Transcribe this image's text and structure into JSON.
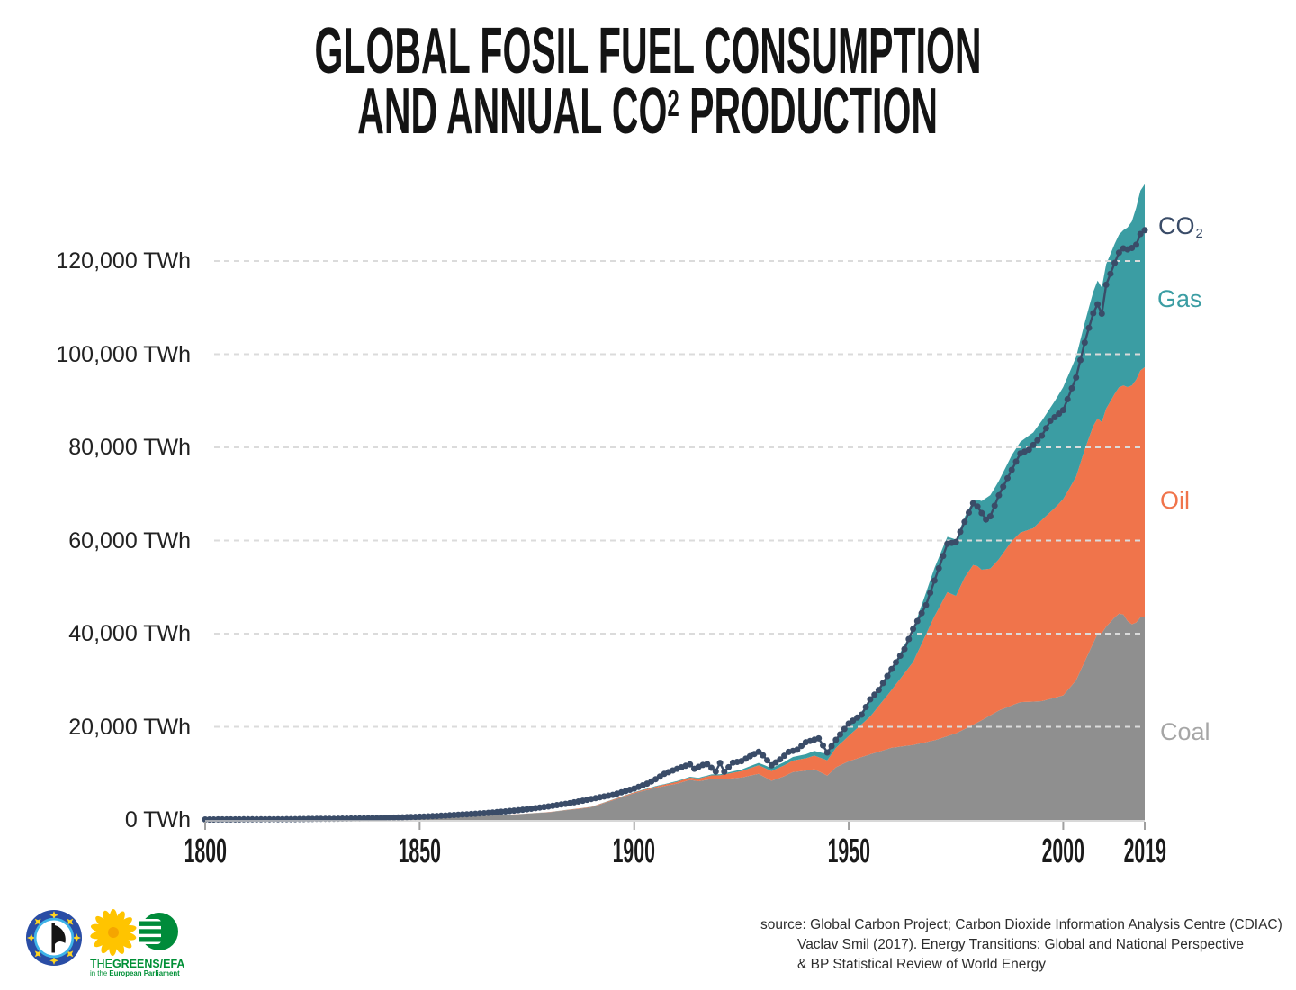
{
  "title": {
    "line1": "GLOBAL FOSIL FUEL CONSUMPTION",
    "line2_pre": "AND ANNUAL CO",
    "line2_sup": "2",
    "line2_post": " PRODUCTION"
  },
  "legend": {
    "co2_pre": "CO",
    "co2_sub": "2",
    "gas": "Gas",
    "oil": "Oil",
    "coal": "Coal"
  },
  "source": {
    "line1": "source: Global Carbon Project; Carbon Dioxide Information Analysis Centre (CDIAC)",
    "line2": "Vaclav Smil (2017). Energy Transitions: Global and National Perspective",
    "line3": "& BP Statistical Review of World Energy"
  },
  "footer_logos": {
    "pirate_alt": "european-pirate-party-logo",
    "greens": {
      "the": "THE",
      "rest": "GREENS/EFA",
      "sub_pre": "in the ",
      "sub_bold": "European Parliament"
    }
  },
  "chart_data": {
    "type": "area",
    "stacked": true,
    "title": "Global fosil fuel consumption and annual CO2 production",
    "x": {
      "min": 1800,
      "max": 2019,
      "ticks": [
        1800,
        1850,
        1900,
        1950,
        2000,
        2019
      ]
    },
    "y": {
      "min": 0,
      "max": 130000,
      "unit": "TWh",
      "label_ticks": [
        0,
        20000,
        40000,
        60000,
        80000,
        100000,
        120000
      ],
      "grid_ticks": [
        20000,
        40000,
        60000,
        80000,
        100000,
        120000
      ],
      "gridline_color": "#DBDBDB",
      "axis_color": "#CCCCCC",
      "tick_color": "#A0A0A0"
    },
    "series": [
      {
        "name": "Coal",
        "color": "#8F8F8F",
        "label_color": "#A6A6A6",
        "points": [
          [
            1800,
            97
          ],
          [
            1810,
            128
          ],
          [
            1820,
            153
          ],
          [
            1830,
            264
          ],
          [
            1840,
            356
          ],
          [
            1850,
            569
          ],
          [
            1860,
            794
          ],
          [
            1870,
            1061
          ],
          [
            1880,
            1642
          ],
          [
            1890,
            2703
          ],
          [
            1900,
            5728
          ],
          [
            1905,
            6900
          ],
          [
            1910,
            7800
          ],
          [
            1913,
            8600
          ],
          [
            1915,
            8300
          ],
          [
            1918,
            8800
          ],
          [
            1920,
            8700
          ],
          [
            1925,
            9100
          ],
          [
            1929,
            9900
          ],
          [
            1932,
            8400
          ],
          [
            1935,
            9400
          ],
          [
            1937,
            10300
          ],
          [
            1940,
            10600
          ],
          [
            1942,
            10900
          ],
          [
            1945,
            9500
          ],
          [
            1947,
            11300
          ],
          [
            1950,
            12600
          ],
          [
            1955,
            14100
          ],
          [
            1960,
            15500
          ],
          [
            1965,
            16100
          ],
          [
            1970,
            17100
          ],
          [
            1975,
            18600
          ],
          [
            1980,
            20900
          ],
          [
            1985,
            23500
          ],
          [
            1990,
            25300
          ],
          [
            1995,
            25500
          ],
          [
            2000,
            26750
          ],
          [
            2003,
            30000
          ],
          [
            2005,
            34000
          ],
          [
            2007,
            38000
          ],
          [
            2008,
            40000
          ],
          [
            2009,
            40100
          ],
          [
            2010,
            41500
          ],
          [
            2012,
            43500
          ],
          [
            2013,
            44300
          ],
          [
            2014,
            44100
          ],
          [
            2015,
            42700
          ],
          [
            2016,
            42000
          ],
          [
            2017,
            42400
          ],
          [
            2018,
            43500
          ],
          [
            2019,
            43600
          ]
        ]
      },
      {
        "name": "Oil",
        "color": "#F0744B",
        "label_color": "#F0744B",
        "points": [
          [
            1860,
            0
          ],
          [
            1870,
            9
          ],
          [
            1880,
            33
          ],
          [
            1890,
            89
          ],
          [
            1900,
            181
          ],
          [
            1905,
            250
          ],
          [
            1910,
            397
          ],
          [
            1915,
            560
          ],
          [
            1920,
            889
          ],
          [
            1925,
            1400
          ],
          [
            1930,
            1935
          ],
          [
            1935,
            2340
          ],
          [
            1940,
            2646
          ],
          [
            1945,
            3300
          ],
          [
            1950,
            5444
          ],
          [
            1955,
            8100
          ],
          [
            1960,
            12415
          ],
          [
            1965,
            17800
          ],
          [
            1970,
            26662
          ],
          [
            1973,
            30900
          ],
          [
            1975,
            29500
          ],
          [
            1977,
            32500
          ],
          [
            1979,
            34300
          ],
          [
            1980,
            33600
          ],
          [
            1981,
            32300
          ],
          [
            1983,
            31500
          ],
          [
            1985,
            32500
          ],
          [
            1988,
            35300
          ],
          [
            1990,
            36400
          ],
          [
            1993,
            37200
          ],
          [
            1995,
            38900
          ],
          [
            1998,
            40700
          ],
          [
            2000,
            42150
          ],
          [
            2003,
            43700
          ],
          [
            2005,
            45500
          ],
          [
            2007,
            46600
          ],
          [
            2008,
            46200
          ],
          [
            2009,
            45300
          ],
          [
            2010,
            46800
          ],
          [
            2012,
            48000
          ],
          [
            2014,
            49200
          ],
          [
            2016,
            51300
          ],
          [
            2018,
            53000
          ],
          [
            2019,
            53620
          ]
        ]
      },
      {
        "name": "Gas",
        "color": "#3B9DA3",
        "label_color": "#3B9DA3",
        "points": [
          [
            1880,
            7
          ],
          [
            1890,
            30
          ],
          [
            1900,
            64
          ],
          [
            1910,
            150
          ],
          [
            1920,
            233
          ],
          [
            1925,
            330
          ],
          [
            1930,
            570
          ],
          [
            1935,
            700
          ],
          [
            1940,
            866
          ],
          [
            1945,
            1300
          ],
          [
            1950,
            2092
          ],
          [
            1955,
            3150
          ],
          [
            1960,
            4708
          ],
          [
            1965,
            6900
          ],
          [
            1970,
            10337
          ],
          [
            1973,
            11900
          ],
          [
            1975,
            12100
          ],
          [
            1980,
            14243
          ],
          [
            1985,
            16800
          ],
          [
            1990,
            19484
          ],
          [
            1995,
            21300
          ],
          [
            2000,
            24038
          ],
          [
            2003,
            25700
          ],
          [
            2005,
            27200
          ],
          [
            2007,
            28800
          ],
          [
            2008,
            29600
          ],
          [
            2009,
            28900
          ],
          [
            2010,
            31000
          ],
          [
            2012,
            32200
          ],
          [
            2014,
            33300
          ],
          [
            2016,
            35200
          ],
          [
            2018,
            38600
          ],
          [
            2019,
            39292
          ]
        ]
      }
    ],
    "line_series": {
      "name": "CO2",
      "color": "#3A4C68",
      "points": [
        [
          1800,
          100
        ],
        [
          1810,
          130
        ],
        [
          1820,
          170
        ],
        [
          1830,
          260
        ],
        [
          1840,
          390
        ],
        [
          1850,
          690
        ],
        [
          1855,
          900
        ],
        [
          1860,
          1170
        ],
        [
          1865,
          1450
        ],
        [
          1870,
          1830
        ],
        [
          1875,
          2300
        ],
        [
          1880,
          2900
        ],
        [
          1885,
          3600
        ],
        [
          1890,
          4500
        ],
        [
          1895,
          5400
        ],
        [
          1900,
          6740
        ],
        [
          1903,
          7800
        ],
        [
          1905,
          8760
        ],
        [
          1907,
          9900
        ],
        [
          1910,
          11000
        ],
        [
          1913,
          11940
        ],
        [
          1914,
          11000
        ],
        [
          1916,
          11800
        ],
        [
          1917,
          12000
        ],
        [
          1919,
          10400
        ],
        [
          1920,
          12250
        ],
        [
          1921,
          10350
        ],
        [
          1923,
          12300
        ],
        [
          1925,
          12630
        ],
        [
          1927,
          13700
        ],
        [
          1929,
          14630
        ],
        [
          1930,
          13900
        ],
        [
          1932,
          11730
        ],
        [
          1934,
          13000
        ],
        [
          1936,
          14600
        ],
        [
          1938,
          15100
        ],
        [
          1940,
          16700
        ],
        [
          1943,
          17500
        ],
        [
          1945,
          14500
        ],
        [
          1947,
          17200
        ],
        [
          1950,
          20700
        ],
        [
          1953,
          22600
        ],
        [
          1955,
          25900
        ],
        [
          1957,
          27900
        ],
        [
          1960,
          32400
        ],
        [
          1963,
          36700
        ],
        [
          1965,
          41000
        ],
        [
          1968,
          46100
        ],
        [
          1970,
          51400
        ],
        [
          1973,
          59300
        ],
        [
          1975,
          59700
        ],
        [
          1977,
          64000
        ],
        [
          1979,
          68000
        ],
        [
          1980,
          67300
        ],
        [
          1982,
          64500
        ],
        [
          1983,
          65200
        ],
        [
          1985,
          69700
        ],
        [
          1987,
          73400
        ],
        [
          1990,
          78700
        ],
        [
          1992,
          79500
        ],
        [
          1995,
          82500
        ],
        [
          1997,
          85700
        ],
        [
          2000,
          88000
        ],
        [
          2003,
          95000
        ],
        [
          2005,
          102500
        ],
        [
          2007,
          108800
        ],
        [
          2008,
          110700
        ],
        [
          2009,
          108700
        ],
        [
          2010,
          114900
        ],
        [
          2012,
          119600
        ],
        [
          2013,
          121800
        ],
        [
          2014,
          122700
        ],
        [
          2015,
          122500
        ],
        [
          2016,
          122800
        ],
        [
          2017,
          123500
        ],
        [
          2018,
          125800
        ],
        [
          2019,
          126600
        ]
      ]
    }
  }
}
